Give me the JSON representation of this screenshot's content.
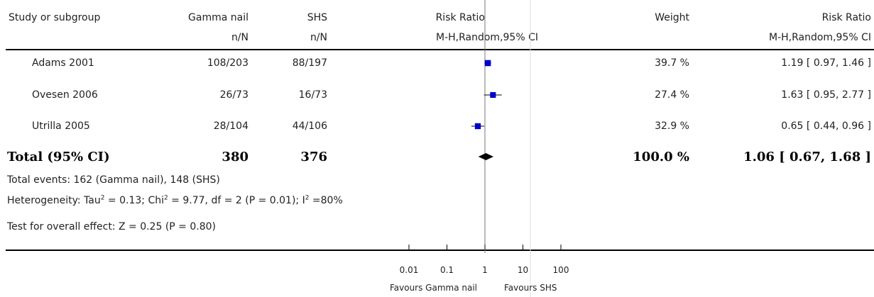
{
  "header": {
    "study": "Study or subgroup",
    "group1": "Gamma nail",
    "group2": "SHS",
    "n_label1": "n/N",
    "n_label2": "n/N",
    "rr_title": "Risk Ratio",
    "rr_method": "M-H,Random,95% CI",
    "weight": "Weight",
    "rr_title2": "Risk Ratio",
    "rr_method2": "M-H,Random,95% CI"
  },
  "studies": [
    {
      "name": "Adams 2001",
      "g1": "108/203",
      "g2": "88/197",
      "weight": "39.7 %",
      "ci_text": "1.19 [ 0.97, 1.46 ]"
    },
    {
      "name": "Ovesen 2006",
      "g1": "26/73",
      "g2": "16/73",
      "weight": "27.4 %",
      "ci_text": "1.63 [ 0.95, 2.77 ]"
    },
    {
      "name": "Utrilla 2005",
      "g1": "28/104",
      "g2": "44/106",
      "weight": "32.9 %",
      "ci_text": "0.65 [ 0.44, 0.96 ]"
    }
  ],
  "total": {
    "label": "Total (95% CI)",
    "g1": "380",
    "g2": "376",
    "weight": "100.0 %",
    "ci_text": "1.06 [ 0.67, 1.68 ]"
  },
  "footnotes": {
    "events": "Total events: 162 (Gamma nail), 148 (SHS)",
    "het_a": "Heterogeneity: Tau",
    "het_b": " = 0.13; Chi",
    "het_c": " = 9.77, df = 2 (P = 0.01); I",
    "het_d": " =80%",
    "sup2": "2",
    "overall": "Test for overall effect: Z = 0.25 (P = 0.80)"
  },
  "axis": {
    "ticks": [
      "0.01",
      "0.1",
      "1",
      "10",
      "100"
    ],
    "favours_left": "Favours Gamma nail",
    "favours_right": "Favours SHS"
  },
  "chart_data": {
    "type": "forest",
    "x_scale": "log",
    "xlim": [
      0.01,
      100
    ],
    "x_ticks": [
      0.01,
      0.1,
      1,
      10,
      100
    ],
    "studies": [
      {
        "name": "Adams 2001",
        "rr": 1.19,
        "lo": 0.97,
        "hi": 1.46,
        "weight": 39.7
      },
      {
        "name": "Ovesen 2006",
        "rr": 1.63,
        "lo": 0.95,
        "hi": 2.77,
        "weight": 27.4
      },
      {
        "name": "Utrilla 2005",
        "rr": 0.65,
        "lo": 0.44,
        "hi": 0.96,
        "weight": 32.9
      }
    ],
    "pooled": {
      "rr": 1.06,
      "lo": 0.67,
      "hi": 1.68
    },
    "colors": {
      "marker": "#0000cc",
      "line": "#000000",
      "diamond": "#000000",
      "ref_line": "#bbbbbb"
    }
  }
}
